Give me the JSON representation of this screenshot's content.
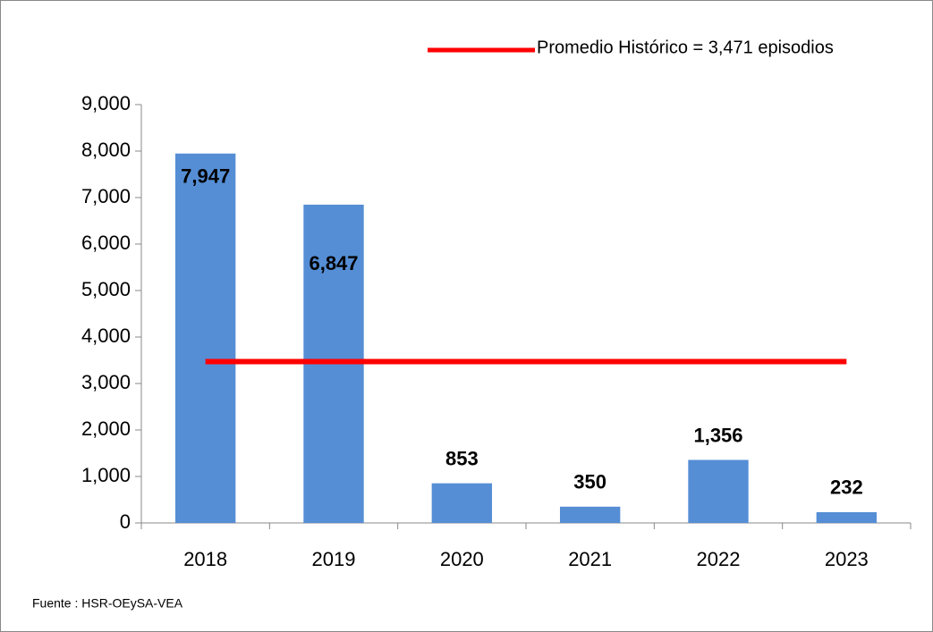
{
  "chart_data": {
    "type": "bar",
    "categories": [
      "2018",
      "2019",
      "2020",
      "2021",
      "2022",
      "2023"
    ],
    "values": [
      7947,
      6847,
      853,
      350,
      1356,
      232
    ],
    "value_labels": [
      "7,947",
      "6,847",
      "853",
      "350",
      "1,356",
      "232"
    ],
    "color": "#558ed5",
    "series": [
      {
        "name": "Promedio Histórico = 3,471 episodios",
        "color": "#ff0000",
        "type": "line",
        "values": [
          3471,
          3471,
          3471,
          3471,
          3471,
          3471
        ]
      }
    ],
    "ylim": [
      0,
      9000
    ],
    "yticks": [
      0,
      {
        "value": 1000,
        "label": "1,000"
      },
      {
        "value": 2000,
        "label": "2,000"
      },
      {
        "value": 3000,
        "label": "3,000"
      },
      {
        "value": 4000,
        "label": "4,000"
      },
      {
        "value": 5000,
        "label": "5,000"
      },
      {
        "value": 6000,
        "label": "6,000"
      },
      {
        "value": 7000,
        "label": "7,000"
      },
      {
        "value": 8000,
        "label": "8,000"
      },
      {
        "value": 9000,
        "label": "9,000"
      }
    ],
    "grid": false,
    "source": "Fuente : HSR-OEySA-VEA"
  }
}
